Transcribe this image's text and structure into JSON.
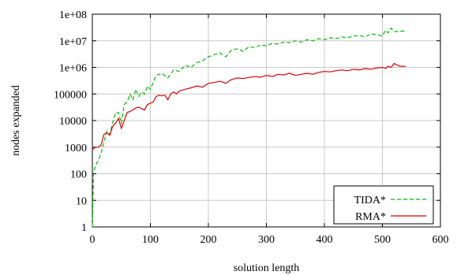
{
  "chart_data": {
    "type": "line",
    "title": "",
    "xlabel": "solution length",
    "ylabel": "nodes expanded",
    "xlim": [
      0,
      600
    ],
    "ylim": [
      1,
      100000000
    ],
    "y_scale": "log",
    "x_ticks": [
      0,
      100,
      200,
      300,
      400,
      500,
      600
    ],
    "x_tick_labels": [
      "0",
      "100",
      "200",
      "300",
      "400",
      "500",
      "600"
    ],
    "y_ticks": [
      1,
      10,
      100,
      1000,
      10000,
      100000,
      1000000,
      10000000,
      100000000
    ],
    "y_tick_labels": [
      "1",
      "10",
      "100",
      "1000",
      "10000",
      "100000",
      "1e+06",
      "1e+07",
      "1e+08"
    ],
    "grid": true,
    "legend_position": "bottom-right",
    "series": [
      {
        "name": "TIDA*",
        "color": "#00bb00",
        "dash": "dashed",
        "x": [
          0,
          2,
          5,
          10,
          15,
          20,
          25,
          30,
          35,
          40,
          45,
          50,
          55,
          60,
          65,
          70,
          75,
          80,
          85,
          90,
          95,
          100,
          110,
          120,
          130,
          140,
          150,
          160,
          170,
          180,
          190,
          200,
          210,
          220,
          230,
          240,
          250,
          260,
          270,
          280,
          290,
          300,
          310,
          320,
          330,
          340,
          350,
          360,
          370,
          380,
          390,
          400,
          410,
          420,
          430,
          440,
          450,
          460,
          470,
          480,
          490,
          500,
          505,
          510,
          515,
          520,
          530,
          540
        ],
        "y": [
          1,
          100,
          200,
          300,
          600,
          1500,
          4000,
          3000,
          8000,
          20000,
          20000,
          8000,
          40000,
          50000,
          100000,
          60000,
          150000,
          80000,
          120000,
          100000,
          200000,
          150000,
          500000,
          600000,
          400000,
          800000,
          700000,
          1200000,
          1000000,
          1500000,
          1800000,
          2500000,
          3000000,
          3500000,
          2500000,
          4500000,
          5000000,
          4000000,
          6000000,
          5500000,
          7000000,
          6500000,
          8000000,
          7500000,
          9000000,
          8500000,
          10000000,
          9000000,
          11000000,
          10000000,
          12000000,
          11000000,
          13000000,
          12000000,
          14000000,
          13000000,
          15000000,
          16000000,
          14000000,
          18000000,
          17000000,
          15000000,
          25000000,
          20000000,
          30000000,
          22000000,
          23000000,
          23000000
        ]
      },
      {
        "name": "RMA*",
        "color": "#dd0000",
        "dash": "solid",
        "x": [
          0,
          5,
          10,
          15,
          20,
          25,
          30,
          35,
          40,
          45,
          50,
          55,
          60,
          65,
          70,
          75,
          80,
          85,
          90,
          95,
          100,
          105,
          110,
          115,
          120,
          125,
          130,
          135,
          140,
          145,
          150,
          160,
          170,
          180,
          190,
          200,
          210,
          220,
          230,
          240,
          250,
          260,
          270,
          280,
          290,
          300,
          310,
          320,
          330,
          340,
          350,
          360,
          370,
          380,
          390,
          400,
          410,
          420,
          430,
          440,
          450,
          460,
          470,
          480,
          490,
          500,
          505,
          510,
          515,
          520,
          530,
          540
        ],
        "y": [
          800,
          1000,
          1000,
          1200,
          3000,
          3500,
          2800,
          6000,
          8000,
          12000,
          5000,
          10000,
          20000,
          22000,
          25000,
          30000,
          32000,
          28000,
          25000,
          40000,
          45000,
          50000,
          80000,
          90000,
          85000,
          90000,
          60000,
          100000,
          120000,
          100000,
          130000,
          150000,
          170000,
          200000,
          180000,
          250000,
          270000,
          300000,
          250000,
          350000,
          400000,
          380000,
          420000,
          450000,
          430000,
          500000,
          450000,
          550000,
          520000,
          600000,
          500000,
          550000,
          600000,
          550000,
          650000,
          700000,
          680000,
          750000,
          800000,
          750000,
          850000,
          800000,
          900000,
          850000,
          950000,
          1000000,
          900000,
          1100000,
          1000000,
          1400000,
          1100000,
          1100000
        ]
      }
    ]
  }
}
